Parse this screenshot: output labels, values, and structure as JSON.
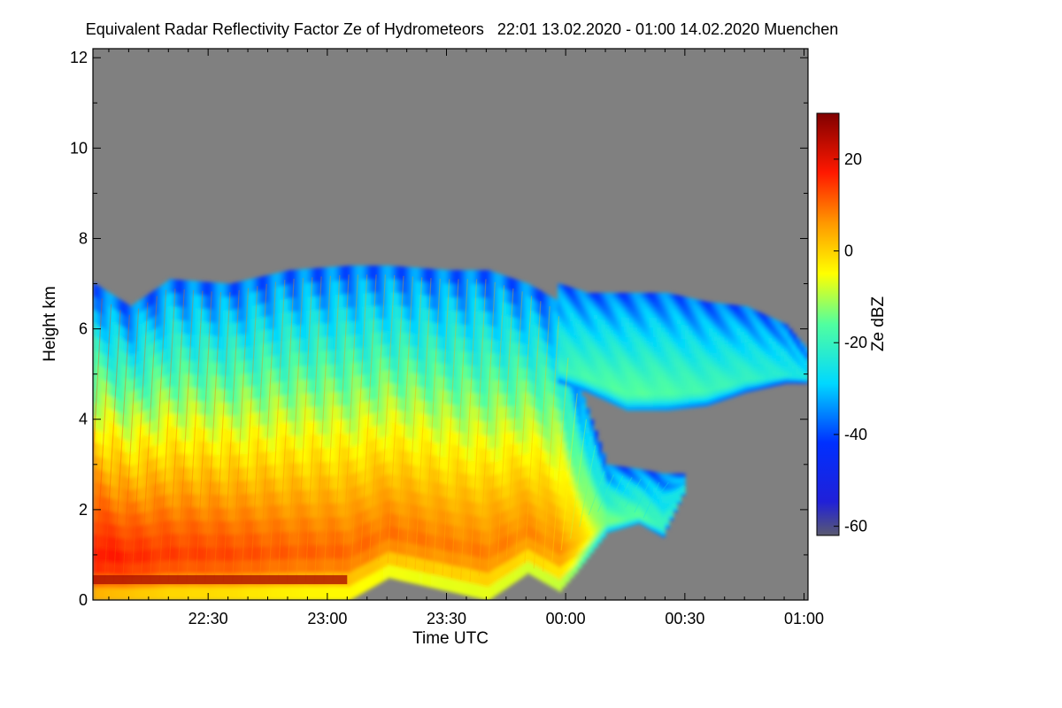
{
  "chart_data": {
    "type": "heatmap",
    "title": "Equivalent Radar Reflectivity Factor Ze of Hydrometeors   22:01 13.02.2020 - 01:00 14.02.2020 Muenchen",
    "xlabel": "Time UTC",
    "ylabel": "Height km",
    "x_unit": "minutes after 22:00 UTC",
    "xlim": [
      1,
      181
    ],
    "ylim": [
      0,
      12.2
    ],
    "x_ticks": [
      {
        "value": 30,
        "label": "22:30"
      },
      {
        "value": 60,
        "label": "23:00"
      },
      {
        "value": 90,
        "label": "23:30"
      },
      {
        "value": 120,
        "label": "00:00"
      },
      {
        "value": 150,
        "label": "00:30"
      },
      {
        "value": 180,
        "label": "01:00"
      }
    ],
    "y_ticks": [
      {
        "value": 0,
        "label": "0"
      },
      {
        "value": 2,
        "label": "2"
      },
      {
        "value": 4,
        "label": "4"
      },
      {
        "value": 6,
        "label": "6"
      },
      {
        "value": 8,
        "label": "8"
      },
      {
        "value": 10,
        "label": "10"
      },
      {
        "value": 12,
        "label": "12"
      }
    ],
    "colorbar": {
      "label": "Ze dBZ",
      "range": [
        -62,
        30
      ],
      "ticks": [
        {
          "value": 20,
          "label": "20"
        },
        {
          "value": 0,
          "label": "0"
        },
        {
          "value": -20,
          "label": "-20"
        },
        {
          "value": -40,
          "label": "-40"
        },
        {
          "value": -60,
          "label": "-60"
        }
      ]
    },
    "no_data_color": "#808080",
    "echo_profiles": [
      {
        "t": 1,
        "top": 7.0,
        "bottom": 0.0,
        "core_dbz": 22
      },
      {
        "t": 10,
        "top": 6.5,
        "bottom": 0.0,
        "core_dbz": 20
      },
      {
        "t": 20,
        "top": 7.1,
        "bottom": 0.0,
        "core_dbz": 18
      },
      {
        "t": 35,
        "top": 7.0,
        "bottom": 0.0,
        "core_dbz": 17
      },
      {
        "t": 50,
        "top": 7.3,
        "bottom": 0.0,
        "core_dbz": 15
      },
      {
        "t": 65,
        "top": 7.4,
        "bottom": 0.0,
        "core_dbz": 14
      },
      {
        "t": 75,
        "top": 7.4,
        "bottom": 0.5,
        "core_dbz": 13
      },
      {
        "t": 90,
        "top": 7.3,
        "bottom": 0.2,
        "core_dbz": 12
      },
      {
        "t": 100,
        "top": 7.3,
        "bottom": 0.0,
        "core_dbz": 12
      },
      {
        "t": 110,
        "top": 7.0,
        "bottom": 0.6,
        "core_dbz": 11
      },
      {
        "t": 118,
        "top": 6.6,
        "bottom": 0.2,
        "core_dbz": 10
      },
      {
        "t": 122,
        "top": 5.0,
        "bottom": 0.6,
        "core_dbz": 6
      },
      {
        "t": 130,
        "top": 3.0,
        "bottom": 1.5,
        "core_dbz": -12
      },
      {
        "t": 138,
        "top": 2.9,
        "bottom": 1.7,
        "core_dbz": -14
      },
      {
        "t": 144,
        "top": 2.8,
        "bottom": 1.4,
        "core_dbz": -18
      },
      {
        "t": 150,
        "top": 2.8,
        "bottom": 2.5,
        "core_dbz": -24
      }
    ],
    "upper_layer": [
      {
        "t": 118,
        "top": 7.0,
        "bottom": 4.8,
        "core_dbz": -18
      },
      {
        "t": 125,
        "top": 6.8,
        "bottom": 4.6,
        "core_dbz": -16
      },
      {
        "t": 135,
        "top": 6.8,
        "bottom": 4.2,
        "core_dbz": -14
      },
      {
        "t": 145,
        "top": 6.8,
        "bottom": 4.2,
        "core_dbz": -15
      },
      {
        "t": 155,
        "top": 6.6,
        "bottom": 4.3,
        "core_dbz": -17
      },
      {
        "t": 165,
        "top": 6.5,
        "bottom": 4.6,
        "core_dbz": -19
      },
      {
        "t": 175,
        "top": 6.1,
        "bottom": 4.8,
        "core_dbz": -22
      },
      {
        "t": 181,
        "top": 5.5,
        "bottom": 4.8,
        "core_dbz": -24
      }
    ]
  }
}
